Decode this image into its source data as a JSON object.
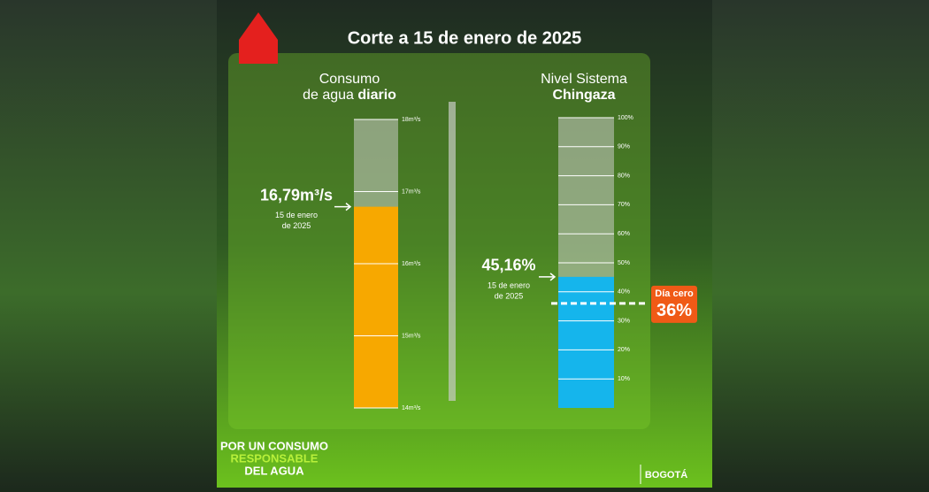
{
  "header": {
    "title": "Corte a 15 de enero de 2025"
  },
  "gauges": [
    {
      "line1": "Consumo",
      "line2": "de agua",
      "line2_bold": "diario",
      "value": 16.79,
      "value_label": "16,79m³/s",
      "date": [
        "15 de enero",
        "de 2025"
      ],
      "min": 14,
      "max": 18,
      "ticks": [
        {
          "value": 18,
          "label": "18m³/s"
        },
        {
          "value": 17,
          "label": "17m³/s"
        },
        {
          "value": 16,
          "label": "16m³/s"
        },
        {
          "value": 15,
          "label": "15m³/s"
        },
        {
          "value": 14,
          "label": "14m³/s"
        }
      ],
      "color": "#f7a800"
    },
    {
      "line1": "Nivel Sistema",
      "line2_bold": "Chingaza",
      "value": 45.16,
      "value_label": "45,16%",
      "date": [
        "15 de enero",
        "de 2025"
      ],
      "min": 0,
      "max": 100,
      "ticks": [
        {
          "value": 100,
          "label": "100%"
        },
        {
          "value": 90,
          "label": "90%"
        },
        {
          "value": 80,
          "label": "80%"
        },
        {
          "value": 70,
          "label": "70%"
        },
        {
          "value": 60,
          "label": "60%"
        },
        {
          "value": 50,
          "label": "50%"
        },
        {
          "value": 40,
          "label": "40%"
        },
        {
          "value": 30,
          "label": "30%"
        },
        {
          "value": 20,
          "label": "20%"
        },
        {
          "value": 10,
          "label": "10%"
        }
      ],
      "threshold": {
        "label": "Día cero",
        "value": 36,
        "value_label": "36%"
      },
      "color": "#15b5ec"
    }
  ],
  "footer": {
    "slogan": [
      "POR UN CONSUMO",
      "RESPONSABLE",
      "DEL AGUA"
    ],
    "brand": "BOGOTÁ"
  }
}
